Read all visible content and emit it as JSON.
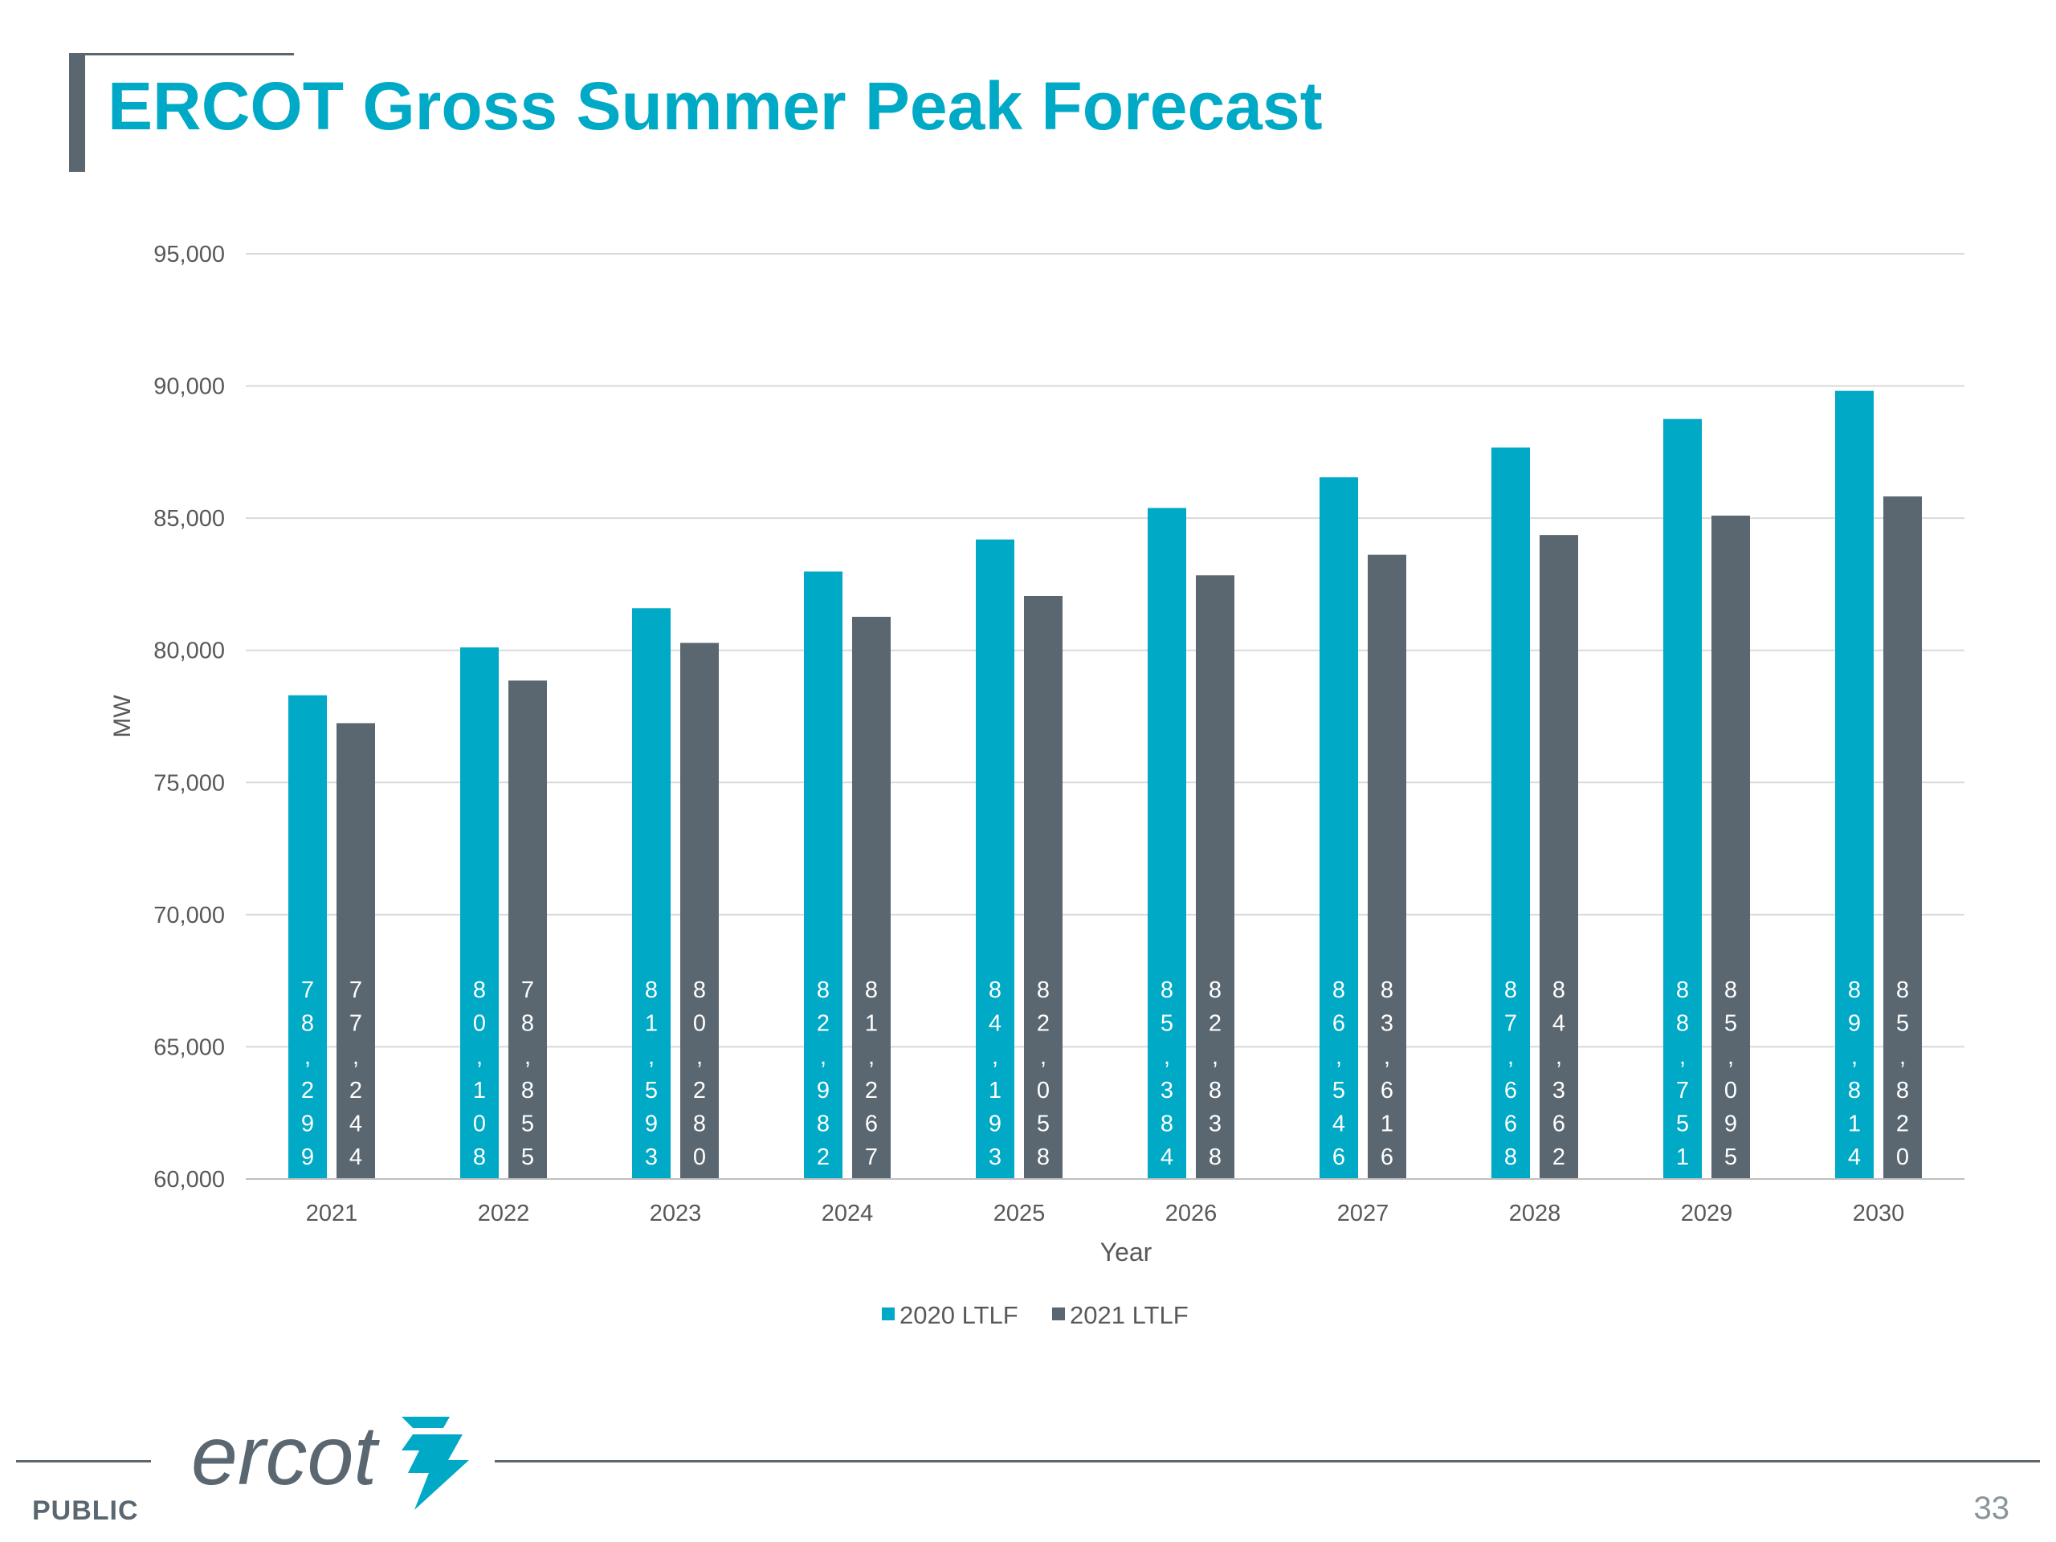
{
  "slide": {
    "title": "ERCOT Gross Summer Peak Forecast",
    "classification": "PUBLIC",
    "page_number": "33",
    "logo_text": "ercot",
    "logo_icon": "ercot-lightning-icon"
  },
  "colors": {
    "accent": "#00a9c5",
    "gray": "#5b6770",
    "grid": "#d9d9d9",
    "axis_text": "#595959"
  },
  "chart_data": {
    "type": "bar",
    "xlabel": "Year",
    "ylabel": "MW",
    "ylim": [
      60000,
      95000
    ],
    "yticks": [
      60000,
      65000,
      70000,
      75000,
      80000,
      85000,
      90000,
      95000
    ],
    "ytick_labels": [
      "60,000",
      "65,000",
      "70,000",
      "75,000",
      "80,000",
      "85,000",
      "90,000",
      "95,000"
    ],
    "grid": true,
    "legend_position": "bottom",
    "categories": [
      "2021",
      "2022",
      "2023",
      "2024",
      "2025",
      "2026",
      "2027",
      "2028",
      "2029",
      "2030"
    ],
    "series": [
      {
        "name": "2020 LTLF",
        "color": "#00a9c5",
        "values": [
          78299,
          80108,
          81593,
          82982,
          84193,
          85384,
          86546,
          87668,
          88751,
          89814
        ],
        "labels": [
          "78,299",
          "80,108",
          "81,593",
          "82,982",
          "84,193",
          "85,384",
          "86,546",
          "87,668",
          "88,751",
          "89,814"
        ]
      },
      {
        "name": "2021 LTLF",
        "color": "#5b6770",
        "values": [
          77244,
          78855,
          80280,
          81267,
          82058,
          82838,
          83616,
          84362,
          85095,
          85820
        ],
        "labels": [
          "77,244",
          "78,855",
          "80,280",
          "81,267",
          "82,058",
          "82,838",
          "83,616",
          "84,362",
          "85,095",
          "85,820"
        ]
      }
    ]
  }
}
